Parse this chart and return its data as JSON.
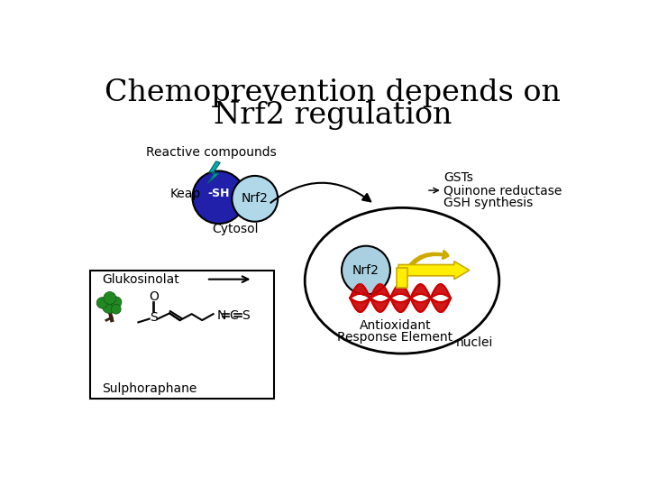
{
  "title_line1": "Chemoprevention depends on",
  "title_line2": "Nrf2 regulation",
  "title_fontsize": 24,
  "bg_color": "#ffffff",
  "keap_color": "#2020aa",
  "nrf2_cytosol_color": "#b0d8e8",
  "nrf2_nucleus_color": "#a8d0e0",
  "sh_label": "-SH",
  "nrf2_label": "Nrf2",
  "keap_label": "Keap",
  "cytosol_label": "Cytosol",
  "reactive_label": "Reactive compounds",
  "gsts_label": "GSTs",
  "quinone_label": "Quinone reductase",
  "gsh_label": "GSH synthesis",
  "glukosinolat_label": "Glukosinolat",
  "sulphoraphane_label": "Sulphoraphane",
  "antioxidant_label": "Antioxidant",
  "response_element_label": "Response Element",
  "nuclei_label": "nuclei",
  "lightning_color": "#00aaaa",
  "red_helix_color": "#cc0000",
  "yellow_arrow_color": "#ffee00",
  "yellow_arrow_edge": "#ccaa00"
}
